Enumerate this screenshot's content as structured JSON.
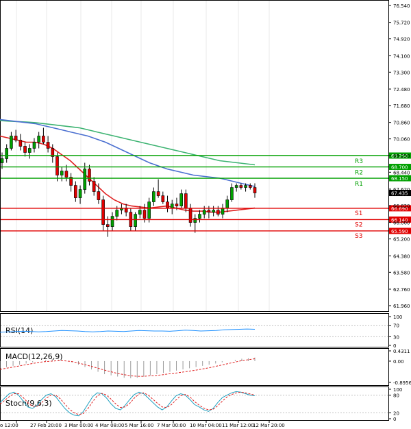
{
  "chart_data": {
    "type": "candlestick",
    "main": {
      "y_ticks": [
        "76.540",
        "75.720",
        "74.920",
        "74.100",
        "73.300",
        "72.480",
        "71.680",
        "70.860",
        "70.060",
        "69.250",
        "68.440",
        "67.620",
        "66.820",
        "66.000",
        "65.200",
        "64.380",
        "63.580",
        "62.760",
        "61.960"
      ],
      "ylim": [
        61.96,
        76.54
      ],
      "x_labels": [
        "o 12:00",
        "27 Feb 20:00",
        "3 Mar 00:00",
        "4 Mar 08:00",
        "5 Mar 16:00",
        "7 Mar 00:00",
        "10 Mar 04:00",
        "11 Mar 12:00",
        "12 Mar 20:00"
      ],
      "current_price": "67.435",
      "levels": [
        {
          "name": "R3",
          "value": 69.25,
          "label": "69.250",
          "color": "#00a000"
        },
        {
          "name": "R2",
          "value": 68.7,
          "label": "68.700",
          "color": "#00a000"
        },
        {
          "name": "R1",
          "value": 68.15,
          "label": "68.150",
          "color": "#00a000"
        },
        {
          "name": "S1",
          "value": 66.69,
          "label": "66.690",
          "color": "#e00000"
        },
        {
          "name": "S2",
          "value": 66.14,
          "label": "66.140",
          "color": "#e00000"
        },
        {
          "name": "S3",
          "value": 65.59,
          "label": "65.590",
          "color": "#e00000"
        }
      ],
      "candles": [
        {
          "o": 68.9,
          "h": 69.4,
          "l": 68.6,
          "c": 69.1
        },
        {
          "o": 69.1,
          "h": 69.8,
          "l": 68.9,
          "c": 69.6
        },
        {
          "o": 69.6,
          "h": 70.4,
          "l": 69.5,
          "c": 70.2
        },
        {
          "o": 70.2,
          "h": 70.5,
          "l": 69.9,
          "c": 70.0
        },
        {
          "o": 70.0,
          "h": 70.3,
          "l": 69.5,
          "c": 69.7
        },
        {
          "o": 69.7,
          "h": 69.9,
          "l": 69.2,
          "c": 69.4
        },
        {
          "o": 69.4,
          "h": 69.8,
          "l": 69.1,
          "c": 69.6
        },
        {
          "o": 69.6,
          "h": 70.1,
          "l": 69.4,
          "c": 69.9
        },
        {
          "o": 69.9,
          "h": 70.4,
          "l": 69.6,
          "c": 70.2
        },
        {
          "o": 70.2,
          "h": 70.6,
          "l": 69.8,
          "c": 69.9
        },
        {
          "o": 69.9,
          "h": 70.2,
          "l": 69.4,
          "c": 69.6
        },
        {
          "o": 69.6,
          "h": 69.8,
          "l": 68.9,
          "c": 69.2
        },
        {
          "o": 69.2,
          "h": 69.4,
          "l": 68.0,
          "c": 68.3
        },
        {
          "o": 68.3,
          "h": 68.7,
          "l": 68.0,
          "c": 68.5
        },
        {
          "o": 68.5,
          "h": 68.8,
          "l": 68.0,
          "c": 68.2
        },
        {
          "o": 68.2,
          "h": 68.4,
          "l": 67.5,
          "c": 67.8
        },
        {
          "o": 67.8,
          "h": 68.0,
          "l": 67.0,
          "c": 67.2
        },
        {
          "o": 67.2,
          "h": 67.8,
          "l": 66.9,
          "c": 67.6
        },
        {
          "o": 67.6,
          "h": 68.9,
          "l": 67.4,
          "c": 68.6
        },
        {
          "o": 68.6,
          "h": 68.8,
          "l": 67.8,
          "c": 68.0
        },
        {
          "o": 68.0,
          "h": 68.2,
          "l": 67.3,
          "c": 67.5
        },
        {
          "o": 67.5,
          "h": 67.9,
          "l": 66.9,
          "c": 67.1
        },
        {
          "o": 67.1,
          "h": 67.3,
          "l": 65.6,
          "c": 65.9
        },
        {
          "o": 65.9,
          "h": 66.3,
          "l": 65.3,
          "c": 65.8
        },
        {
          "o": 65.8,
          "h": 66.5,
          "l": 65.6,
          "c": 66.3
        },
        {
          "o": 66.3,
          "h": 66.8,
          "l": 66.1,
          "c": 66.6
        },
        {
          "o": 66.6,
          "h": 66.9,
          "l": 66.4,
          "c": 66.7
        },
        {
          "o": 66.7,
          "h": 66.9,
          "l": 66.3,
          "c": 66.5
        },
        {
          "o": 66.5,
          "h": 66.7,
          "l": 65.6,
          "c": 65.8
        },
        {
          "o": 65.8,
          "h": 66.5,
          "l": 65.6,
          "c": 66.4
        },
        {
          "o": 66.4,
          "h": 66.8,
          "l": 66.2,
          "c": 66.6
        },
        {
          "o": 66.6,
          "h": 66.9,
          "l": 66.0,
          "c": 66.2
        },
        {
          "o": 66.2,
          "h": 67.2,
          "l": 66.0,
          "c": 67.0
        },
        {
          "o": 67.0,
          "h": 67.7,
          "l": 66.8,
          "c": 67.5
        },
        {
          "o": 67.5,
          "h": 68.1,
          "l": 67.2,
          "c": 67.3
        },
        {
          "o": 67.3,
          "h": 67.5,
          "l": 66.9,
          "c": 67.0
        },
        {
          "o": 67.0,
          "h": 67.3,
          "l": 66.5,
          "c": 66.7
        },
        {
          "o": 66.7,
          "h": 67.1,
          "l": 66.4,
          "c": 66.9
        },
        {
          "o": 66.9,
          "h": 67.2,
          "l": 66.6,
          "c": 66.8
        },
        {
          "o": 66.8,
          "h": 67.6,
          "l": 66.7,
          "c": 67.4
        },
        {
          "o": 67.4,
          "h": 67.6,
          "l": 66.5,
          "c": 66.7
        },
        {
          "o": 66.7,
          "h": 66.9,
          "l": 65.8,
          "c": 66.0
        },
        {
          "o": 66.0,
          "h": 66.4,
          "l": 65.5,
          "c": 66.2
        },
        {
          "o": 66.2,
          "h": 66.6,
          "l": 66.0,
          "c": 66.4
        },
        {
          "o": 66.4,
          "h": 66.8,
          "l": 66.2,
          "c": 66.6
        },
        {
          "o": 66.6,
          "h": 66.8,
          "l": 66.2,
          "c": 66.5
        },
        {
          "o": 66.5,
          "h": 66.8,
          "l": 66.3,
          "c": 66.6
        },
        {
          "o": 66.6,
          "h": 66.8,
          "l": 66.3,
          "c": 66.4
        },
        {
          "o": 66.4,
          "h": 66.9,
          "l": 66.2,
          "c": 66.7
        },
        {
          "o": 66.7,
          "h": 67.3,
          "l": 66.5,
          "c": 67.1
        },
        {
          "o": 67.1,
          "h": 67.9,
          "l": 67.0,
          "c": 67.7
        },
        {
          "o": 67.7,
          "h": 67.9,
          "l": 67.5,
          "c": 67.8
        },
        {
          "o": 67.8,
          "h": 67.9,
          "l": 67.6,
          "c": 67.7
        },
        {
          "o": 67.7,
          "h": 67.9,
          "l": 67.5,
          "c": 67.8
        },
        {
          "o": 67.8,
          "h": 67.9,
          "l": 67.6,
          "c": 67.7
        },
        {
          "o": 67.7,
          "h": 67.9,
          "l": 67.2,
          "c": 67.435
        }
      ],
      "ma_blue": [
        71.0,
        70.95,
        70.9,
        70.85,
        70.8,
        70.7,
        70.6,
        70.5,
        70.4,
        70.3,
        70.2,
        70.05,
        69.9,
        69.7,
        69.5,
        69.3,
        69.1,
        68.9,
        68.75,
        68.6,
        68.5,
        68.4,
        68.3,
        68.25,
        68.2,
        68.15,
        68.05,
        67.95,
        67.85,
        67.75
      ],
      "ma_green": [
        70.95,
        70.92,
        70.9,
        70.88,
        70.85,
        70.8,
        70.75,
        70.7,
        70.65,
        70.6,
        70.5,
        70.4,
        70.3,
        70.2,
        70.1,
        70.0,
        69.9,
        69.8,
        69.7,
        69.6,
        69.5,
        69.4,
        69.3,
        69.2,
        69.1,
        69.0,
        68.95,
        68.9,
        68.85,
        68.8
      ],
      "ma_red": [
        70.2,
        70.1,
        70.0,
        69.9,
        69.9,
        69.8,
        69.6,
        69.3,
        69.0,
        68.6,
        68.2,
        67.8,
        67.4,
        67.1,
        66.9,
        66.8,
        66.75,
        66.7,
        66.75,
        66.8,
        66.7,
        66.6,
        66.55,
        66.55,
        66.5,
        66.5,
        66.55,
        66.6,
        66.65,
        66.7
      ]
    },
    "rsi": {
      "title": "RSI(14)",
      "y_ticks": [
        "100",
        "70",
        "30",
        "0"
      ],
      "values": [
        46,
        47,
        48,
        49,
        48,
        47,
        48,
        50,
        52,
        51,
        50,
        48,
        47,
        48,
        50,
        49,
        48,
        50,
        52,
        51,
        50,
        50,
        49,
        51,
        53,
        52,
        50,
        51,
        52,
        54,
        55,
        56,
        57,
        56
      ]
    },
    "macd": {
      "title": "MACD(12,26,9)",
      "y_ticks": [
        "0.4311",
        "0.00",
        "-0.8956"
      ],
      "hist": [
        -0.3,
        -0.25,
        -0.2,
        -0.15,
        -0.1,
        -0.05,
        0.0,
        0.05,
        0.08,
        0.06,
        0.02,
        -0.05,
        -0.15,
        -0.25,
        -0.35,
        -0.45,
        -0.55,
        -0.6,
        -0.65,
        -0.7,
        -0.72,
        -0.7,
        -0.65,
        -0.6,
        -0.55,
        -0.5,
        -0.45,
        -0.4,
        -0.35,
        -0.3,
        -0.25,
        -0.2,
        -0.15,
        -0.1,
        -0.05,
        0.0,
        0.05,
        0.1,
        0.12,
        0.15
      ],
      "signal": [
        -0.35,
        -0.3,
        -0.25,
        -0.2,
        -0.15,
        -0.1,
        -0.05,
        -0.02,
        0.0,
        0.02,
        0.01,
        -0.02,
        -0.08,
        -0.15,
        -0.22,
        -0.3,
        -0.38,
        -0.45,
        -0.52,
        -0.57,
        -0.62,
        -0.64,
        -0.64,
        -0.62,
        -0.6,
        -0.57,
        -0.53,
        -0.5,
        -0.46,
        -0.42,
        -0.38,
        -0.33,
        -0.28,
        -0.22,
        -0.16,
        -0.1,
        -0.04,
        0.02,
        0.06,
        0.1
      ]
    },
    "stoch": {
      "title": "Stoch(9,6,3)",
      "y_ticks": [
        "100",
        "80",
        "20",
        "0"
      ],
      "main": [
        55,
        70,
        85,
        90,
        80,
        60,
        40,
        35,
        45,
        65,
        80,
        85,
        75,
        55,
        35,
        20,
        12,
        10,
        25,
        50,
        75,
        88,
        85,
        70,
        50,
        35,
        30,
        45,
        65,
        82,
        90,
        85,
        70,
        55,
        40,
        30,
        40,
        60,
        78,
        85,
        80,
        65,
        48,
        40,
        30,
        25,
        35,
        55,
        72,
        80,
        88,
        92,
        90,
        85,
        80,
        78
      ],
      "signal": [
        50,
        62,
        75,
        85,
        85,
        72,
        55,
        42,
        42,
        55,
        70,
        80,
        80,
        68,
        50,
        32,
        20,
        14,
        18,
        35,
        58,
        78,
        86,
        80,
        66,
        50,
        38,
        40,
        52,
        70,
        84,
        88,
        80,
        66,
        52,
        40,
        38,
        48,
        64,
        78,
        82,
        74,
        58,
        46,
        36,
        30,
        32,
        44,
        60,
        74,
        82,
        88,
        90,
        88,
        84,
        80
      ]
    }
  }
}
